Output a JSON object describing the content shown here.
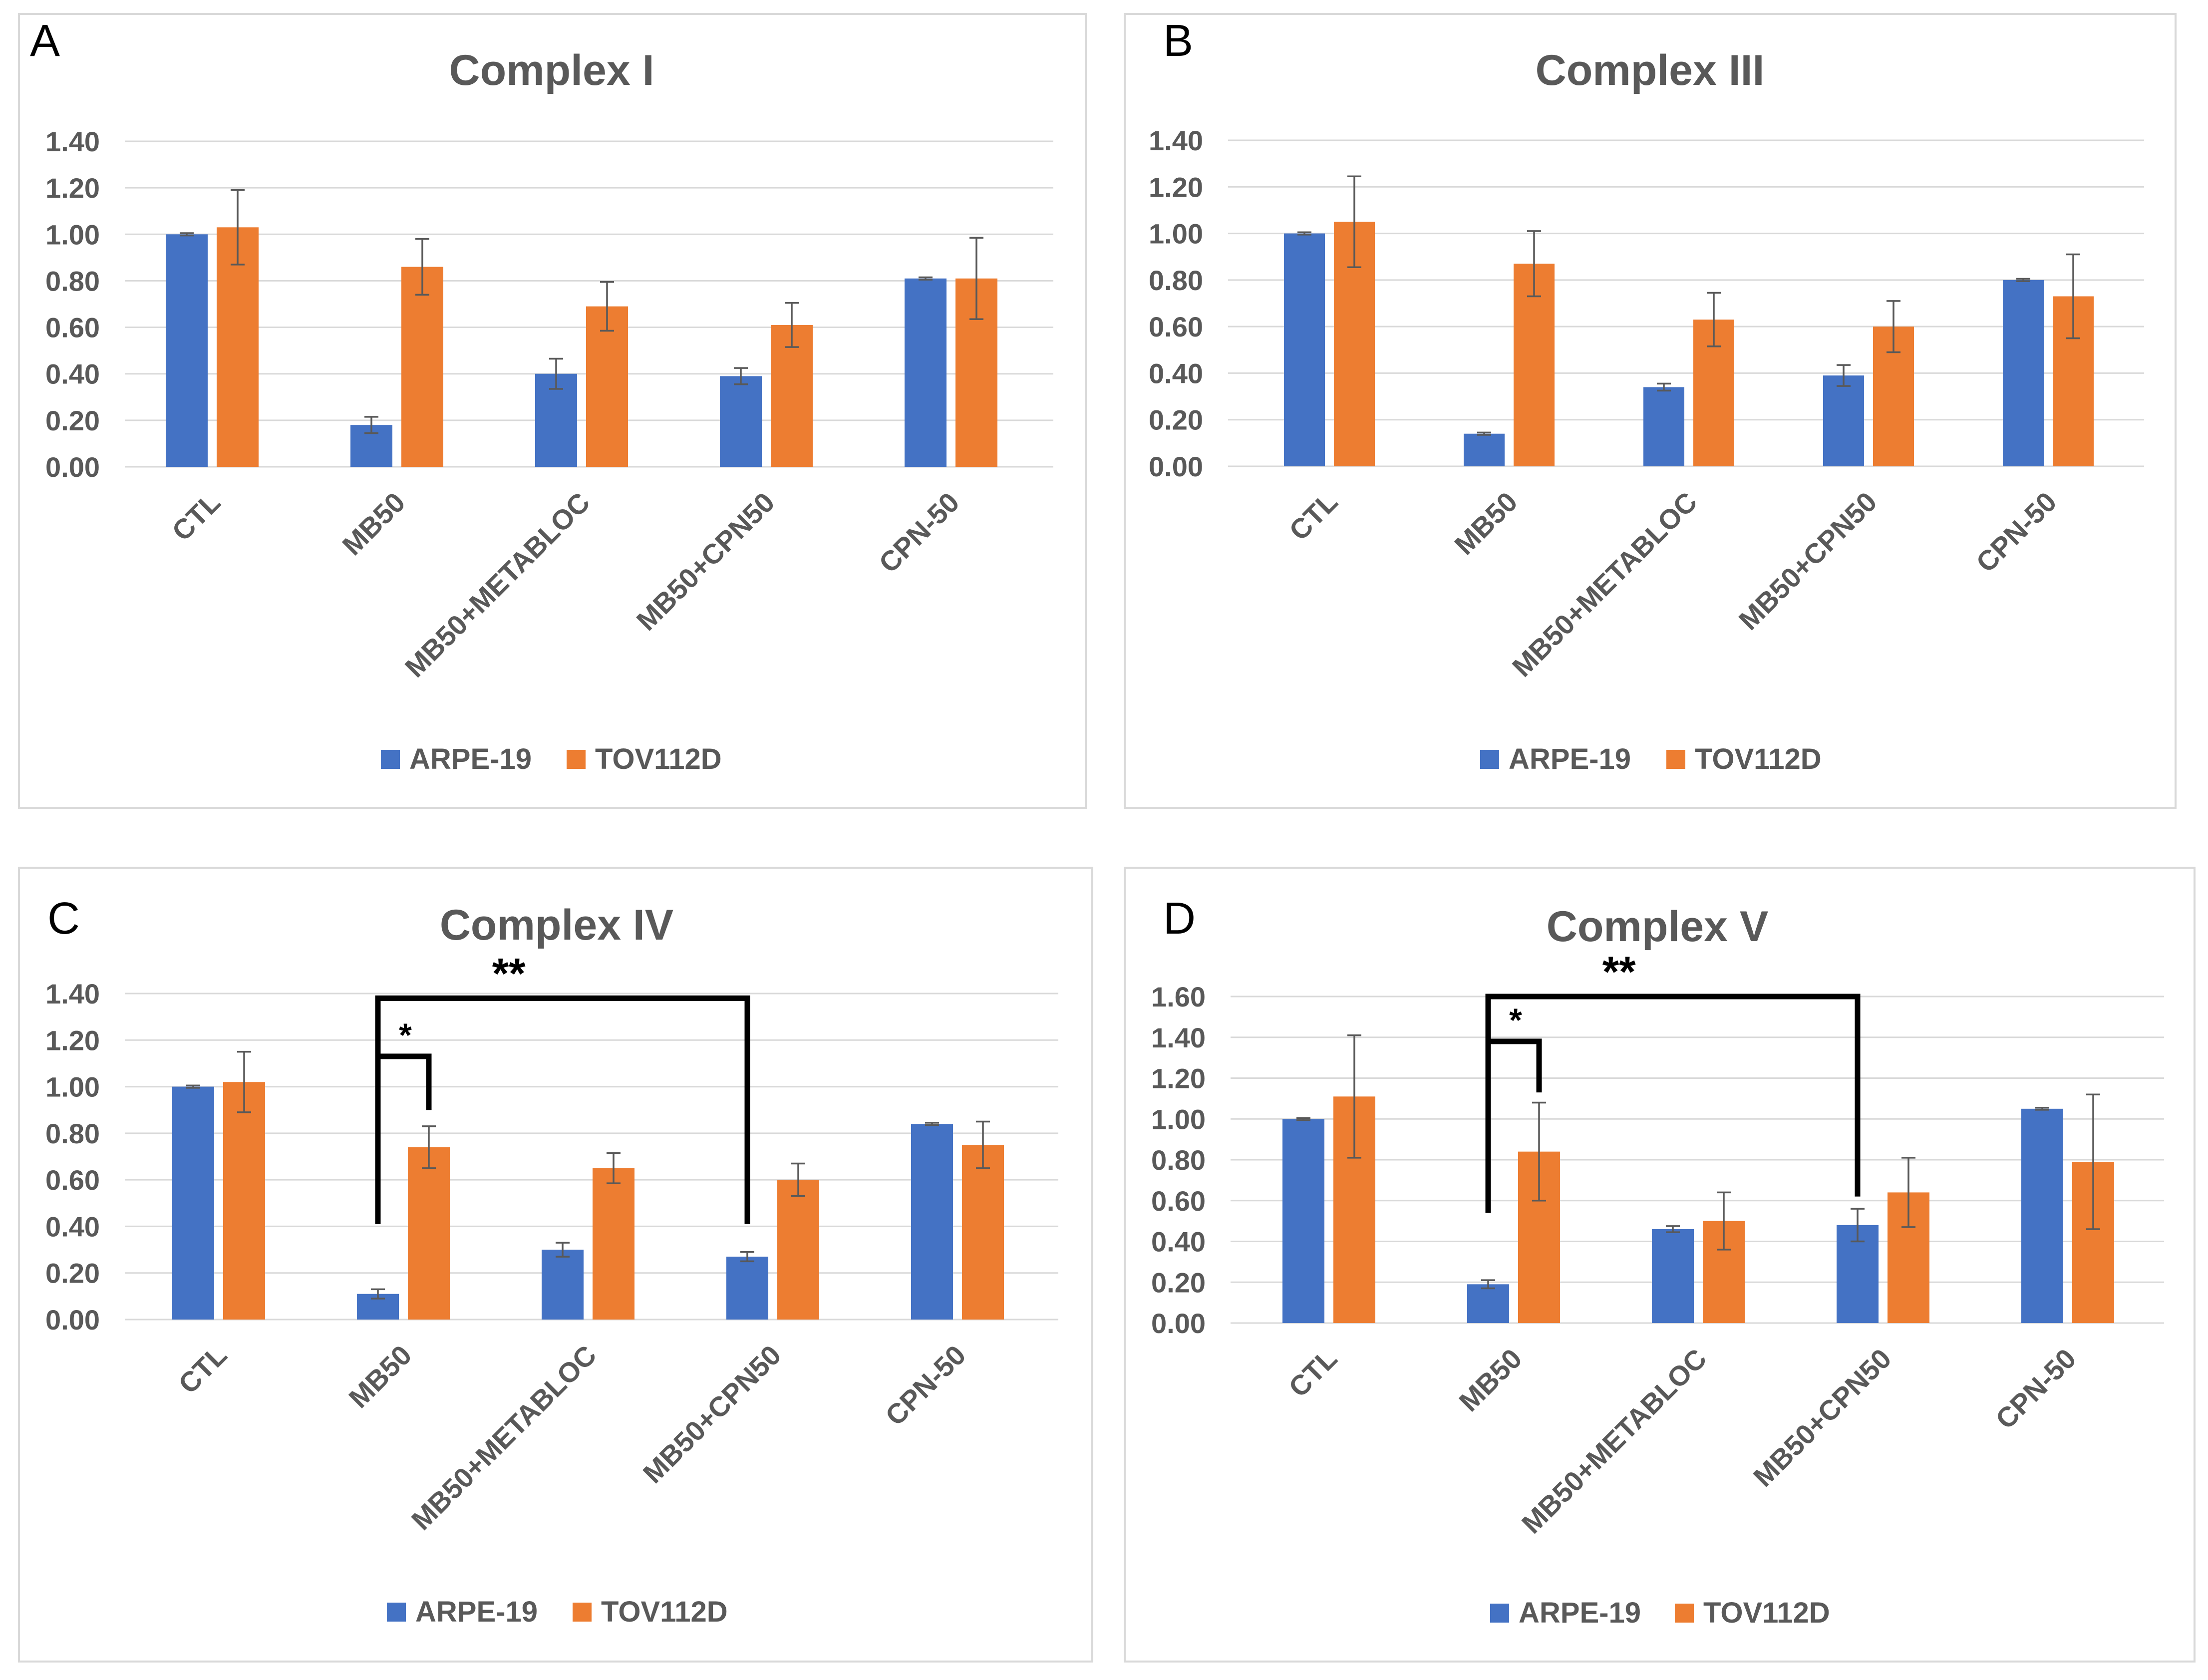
{
  "colors": {
    "arpe": "#4472C4",
    "tov": "#ED7D31"
  },
  "chart_data": [
    {
      "type": "bar",
      "panel": "A",
      "title": "Complex I",
      "categories": [
        "CTL",
        "MB50",
        "MB50+METABLOC",
        "MB50+CPN50",
        "CPN-50"
      ],
      "ylim": [
        0,
        1.4
      ],
      "yticks": [
        "0.00",
        "0.20",
        "0.40",
        "0.60",
        "0.80",
        "1.00",
        "1.20",
        "1.40"
      ],
      "series": [
        {
          "name": "ARPE-19",
          "values": [
            1.0,
            0.18,
            0.4,
            0.39,
            0.81
          ],
          "errors": [
            0.005,
            0.035,
            0.065,
            0.035,
            0.005
          ]
        },
        {
          "name": "TOV112D",
          "values": [
            1.03,
            0.86,
            0.69,
            0.61,
            0.81
          ],
          "errors": [
            0.16,
            0.12,
            0.105,
            0.095,
            0.175
          ]
        }
      ],
      "significance": []
    },
    {
      "type": "bar",
      "panel": "B",
      "title": "Complex III",
      "categories": [
        "CTL",
        "MB50",
        "MB50+METABLOC",
        "MB50+CPN50",
        "CPN-50"
      ],
      "ylim": [
        0,
        1.4
      ],
      "yticks": [
        "0.00",
        "0.20",
        "0.40",
        "0.60",
        "0.80",
        "1.00",
        "1.20",
        "1.40"
      ],
      "series": [
        {
          "name": "ARPE-19",
          "values": [
            1.0,
            0.14,
            0.34,
            0.39,
            0.8
          ],
          "errors": [
            0.005,
            0.005,
            0.015,
            0.045,
            0.005
          ]
        },
        {
          "name": "TOV112D",
          "values": [
            1.05,
            0.87,
            0.63,
            0.6,
            0.73
          ],
          "errors": [
            0.195,
            0.14,
            0.115,
            0.11,
            0.18
          ]
        }
      ],
      "significance": []
    },
    {
      "type": "bar",
      "panel": "C",
      "title": "Complex IV",
      "categories": [
        "CTL",
        "MB50",
        "MB50+METABLOC",
        "MB50+CPN50",
        "CPN-50"
      ],
      "ylim": [
        0,
        1.4
      ],
      "yticks": [
        "0.00",
        "0.20",
        "0.40",
        "0.60",
        "0.80",
        "1.00",
        "1.20",
        "1.40"
      ],
      "series": [
        {
          "name": "ARPE-19",
          "values": [
            1.0,
            0.11,
            0.3,
            0.27,
            0.84
          ],
          "errors": [
            0.005,
            0.02,
            0.03,
            0.02,
            0.005
          ]
        },
        {
          "name": "TOV112D",
          "values": [
            1.02,
            0.74,
            0.65,
            0.6,
            0.75
          ],
          "errors": [
            0.13,
            0.09,
            0.065,
            0.07,
            0.1
          ]
        }
      ],
      "significance": [
        {
          "label": "*",
          "level": 1.13,
          "from": [
            1,
            0,
            0.41
          ],
          "to": [
            1,
            1,
            0.9
          ]
        },
        {
          "label": "**",
          "level": 1.38,
          "from": [
            1,
            0,
            0.41
          ],
          "to": [
            3,
            0,
            0.41
          ]
        }
      ]
    },
    {
      "type": "bar",
      "panel": "D",
      "title": "Complex V",
      "categories": [
        "CTL",
        "MB50",
        "MB50+METABLOC",
        "MB50+CPN50",
        "CPN-50"
      ],
      "ylim": [
        0,
        1.6
      ],
      "yticks": [
        "0.00",
        "0.20",
        "0.40",
        "0.60",
        "0.80",
        "1.00",
        "1.20",
        "1.40",
        "1.60"
      ],
      "series": [
        {
          "name": "ARPE-19",
          "values": [
            1.0,
            0.19,
            0.46,
            0.48,
            1.05
          ],
          "errors": [
            0.005,
            0.02,
            0.015,
            0.08,
            0.005
          ]
        },
        {
          "name": "TOV112D",
          "values": [
            1.11,
            0.84,
            0.5,
            0.64,
            0.79
          ],
          "errors": [
            0.3,
            0.24,
            0.14,
            0.17,
            0.33
          ]
        }
      ],
      "significance": [
        {
          "label": "*",
          "level": 1.38,
          "from": [
            1,
            0,
            0.54
          ],
          "to": [
            1,
            1,
            1.13
          ]
        },
        {
          "label": "**",
          "level": 1.6,
          "from": [
            1,
            0,
            0.54
          ],
          "to": [
            3,
            0,
            0.62
          ]
        }
      ]
    }
  ]
}
